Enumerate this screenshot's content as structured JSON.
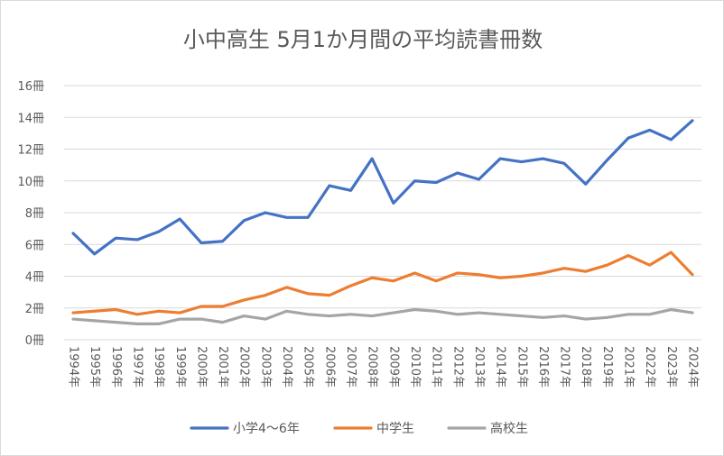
{
  "chart_data": {
    "type": "line",
    "title": "小中高生 5月1か月間の平均読書冊数",
    "xlabel": "",
    "ylabel": "",
    "ylim": [
      0,
      16
    ],
    "y_ticks": [
      "0冊",
      "2冊",
      "4冊",
      "6冊",
      "8冊",
      "10冊",
      "12冊",
      "14冊",
      "16冊"
    ],
    "grid": true,
    "legend_position": "bottom",
    "categories": [
      "1994年",
      "1995年",
      "1996年",
      "1997年",
      "1998年",
      "1999年",
      "2000年",
      "2001年",
      "2002年",
      "2003年",
      "2004年",
      "2005年",
      "2006年",
      "2007年",
      "2008年",
      "2009年",
      "2010年",
      "2011年",
      "2012年",
      "2013年",
      "2014年",
      "2015年",
      "2016年",
      "2017年",
      "2018年",
      "2019年",
      "2021年",
      "2022年",
      "2023年",
      "2024年"
    ],
    "series": [
      {
        "name": "小学4〜6年",
        "color": "#4472c4",
        "values": [
          6.7,
          5.4,
          6.4,
          6.3,
          6.8,
          7.6,
          6.1,
          6.2,
          7.5,
          8.0,
          7.7,
          7.7,
          9.7,
          9.4,
          11.4,
          8.6,
          10.0,
          9.9,
          10.5,
          10.1,
          11.4,
          11.2,
          11.4,
          11.1,
          9.8,
          11.3,
          12.7,
          13.2,
          12.6,
          13.8
        ]
      },
      {
        "name": "中学生",
        "color": "#ed7d31",
        "values": [
          1.7,
          1.8,
          1.9,
          1.6,
          1.8,
          1.7,
          2.1,
          2.1,
          2.5,
          2.8,
          3.3,
          2.9,
          2.8,
          3.4,
          3.9,
          3.7,
          4.2,
          3.7,
          4.2,
          4.1,
          3.9,
          4.0,
          4.2,
          4.5,
          4.3,
          4.7,
          5.3,
          4.7,
          5.5,
          4.1
        ]
      },
      {
        "name": "高校生",
        "color": "#a5a5a5",
        "values": [
          1.3,
          1.2,
          1.1,
          1.0,
          1.0,
          1.3,
          1.3,
          1.1,
          1.5,
          1.3,
          1.8,
          1.6,
          1.5,
          1.6,
          1.5,
          1.7,
          1.9,
          1.8,
          1.6,
          1.7,
          1.6,
          1.5,
          1.4,
          1.5,
          1.3,
          1.4,
          1.6,
          1.6,
          1.9,
          1.7
        ]
      }
    ]
  }
}
